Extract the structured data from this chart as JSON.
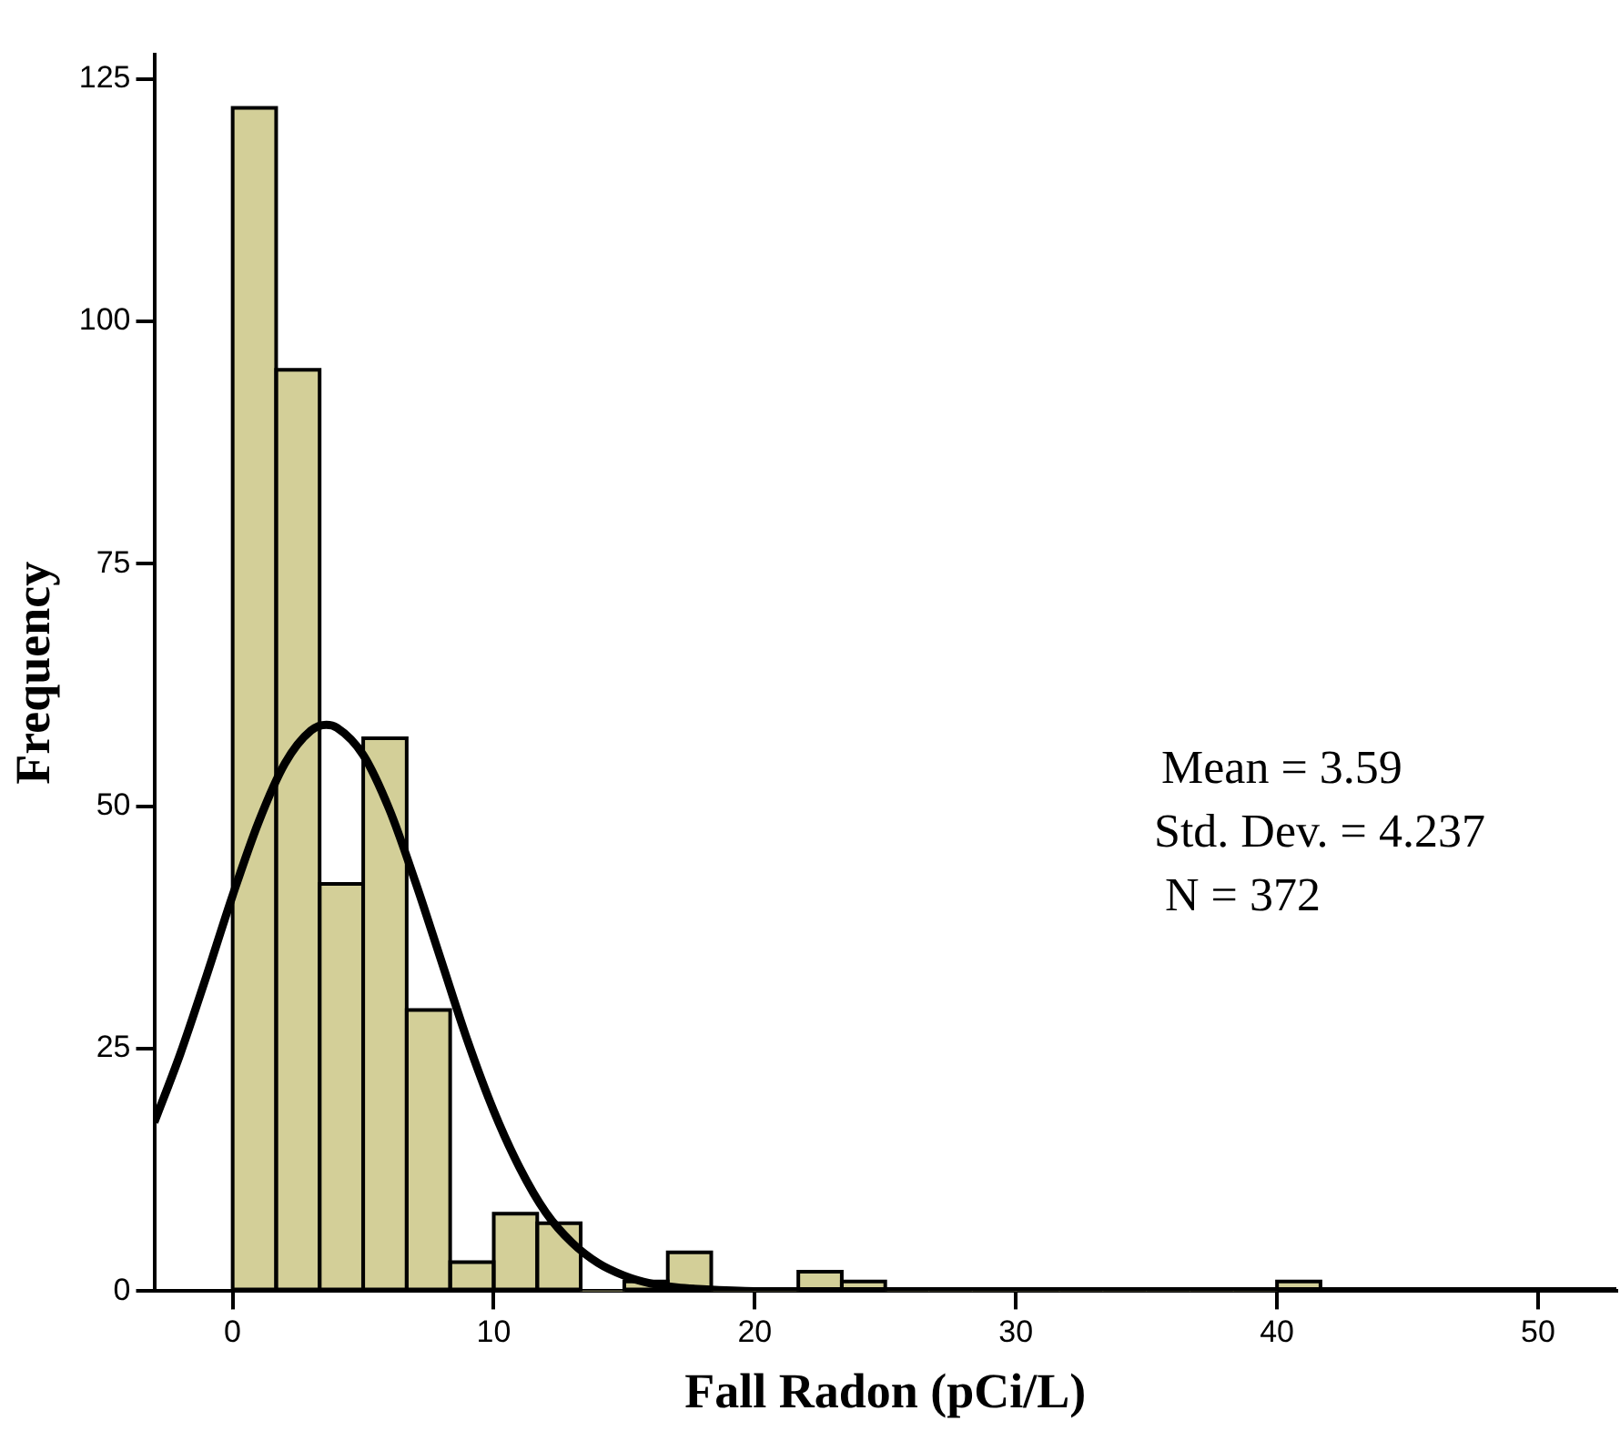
{
  "chart_data": {
    "type": "histogram",
    "xlabel": "Fall Radon (pCi/L)",
    "ylabel": "Frequency",
    "bins": [
      0,
      1.67,
      3.33,
      5,
      6.67,
      8.33,
      10,
      11.67,
      13.33,
      15,
      16.67,
      18.33,
      20,
      21.67,
      23.33,
      25,
      26.67,
      28.33,
      30,
      31.67,
      33.33,
      35,
      36.67,
      38.33,
      40,
      41.67
    ],
    "values": [
      122,
      95,
      42,
      57,
      29,
      3,
      8,
      7,
      0,
      1,
      4,
      0,
      0,
      2,
      1,
      0,
      0,
      0,
      0,
      0,
      0,
      0,
      0,
      0,
      1
    ],
    "color": "#d3cf98",
    "series": [
      {
        "type": "line",
        "color": "#000000",
        "x": [
          -3,
          -2,
          -1,
          0,
          1,
          2,
          3,
          3.59,
          4,
          5,
          6,
          7,
          8,
          9,
          10,
          11,
          12,
          13,
          14,
          15,
          16,
          17,
          18,
          20,
          22,
          30,
          40,
          53
        ],
        "values": [
          17.4,
          24.5,
          32.5,
          40.8,
          48.4,
          54.4,
          57.8,
          58.4,
          58.1,
          55.3,
          49.7,
          42.2,
          34,
          25.8,
          18.6,
          12.7,
          8.1,
          5,
          2.9,
          1.6,
          0.8,
          0.4,
          0.2,
          0,
          0,
          0,
          0,
          0
        ]
      }
    ],
    "xlim": [
      -3,
      53
    ],
    "xticks": [
      0,
      10,
      20,
      30,
      40,
      50
    ],
    "ylim": [
      0,
      127.5
    ],
    "yticks": [
      0,
      25,
      50,
      75,
      100,
      125
    ],
    "grid": false,
    "legend": false,
    "annotations": [
      "Mean = 3.59",
      "Std. Dev. = 4.237",
      "N = 372"
    ]
  }
}
